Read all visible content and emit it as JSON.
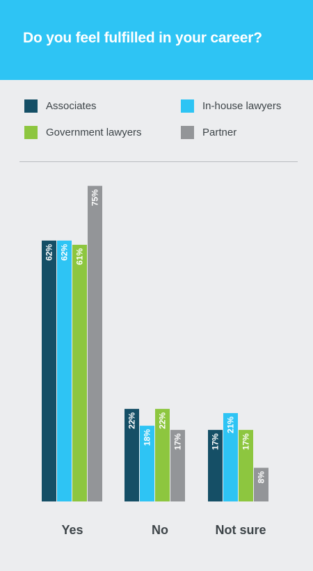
{
  "header": {
    "title": "Do you feel fulfilled in your career?"
  },
  "colors": {
    "header_bg": "#2ec4f4",
    "background": "#ecedef"
  },
  "chart_data": {
    "type": "bar",
    "title": "Do you feel fulfilled in your career?",
    "xlabel": "",
    "ylabel": "",
    "unit": "%",
    "grid": false,
    "legend_position": "top",
    "ylim": [
      0,
      75
    ],
    "categories": [
      "Yes",
      "No",
      "Not sure"
    ],
    "series": [
      {
        "name": "Associates",
        "color": "#154f66",
        "values": [
          62,
          22,
          17
        ],
        "labels": [
          "62%",
          "22%",
          "17%"
        ]
      },
      {
        "name": "In-house lawyers",
        "color": "#2ec4f4",
        "values": [
          62,
          18,
          21
        ],
        "labels": [
          "62%",
          "18%",
          "21%"
        ]
      },
      {
        "name": "Government lawyers",
        "color": "#8dc63f",
        "values": [
          61,
          22,
          17
        ],
        "labels": [
          "61%",
          "22%",
          "17%"
        ]
      },
      {
        "name": "Partner",
        "color": "#939598",
        "values": [
          75,
          17,
          8
        ],
        "labels": [
          "75%",
          "17%",
          "8%"
        ]
      }
    ]
  }
}
